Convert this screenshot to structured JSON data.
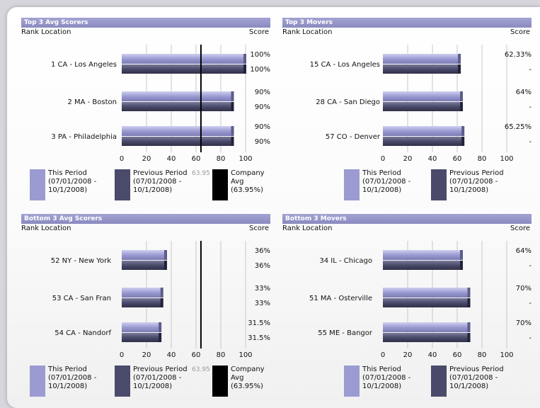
{
  "colors": {
    "this_period": "#9b9bd2",
    "previous_period": "#4a4a6a",
    "company_avg": "#000000"
  },
  "column_headers": {
    "rank_location": "Rank  Location",
    "score": "Score"
  },
  "legend": {
    "this_period": "This Period (07/01/2008 - 10/1/2008)",
    "previous_period": "Previous Period (07/01/2008 - 10/1/2008)",
    "company_avg": "Company Avg (63.95%)"
  },
  "panels": [
    {
      "title": "Top 3 Avg Scorers",
      "show_company_avg": true,
      "company_avg_label": "63.95",
      "rows": [
        {
          "rank_location": "1  CA - Los Angeles",
          "this_label": "100%",
          "prev_label": "100%"
        },
        {
          "rank_location": "2  MA - Boston",
          "this_label": "90%",
          "prev_label": "90%"
        },
        {
          "rank_location": "3  PA - Philadelphia",
          "this_label": "90%",
          "prev_label": "90%"
        }
      ]
    },
    {
      "title": "Top 3 Movers",
      "show_company_avg": false,
      "company_avg_label": "",
      "rows": [
        {
          "rank_location": "15  CA - Los Angeles",
          "this_label": "62.33%",
          "prev_label": "-"
        },
        {
          "rank_location": "28  CA - San Diego",
          "this_label": "64%",
          "prev_label": "-"
        },
        {
          "rank_location": "57  CO - Denver",
          "this_label": "65.25%",
          "prev_label": "-"
        }
      ]
    },
    {
      "title": "Bottom 3 Avg Scorers",
      "show_company_avg": true,
      "company_avg_label": "63.95",
      "rows": [
        {
          "rank_location": "52  NY - New York",
          "this_label": "36%",
          "prev_label": "36%"
        },
        {
          "rank_location": "53  CA - San Fran",
          "this_label": "33%",
          "prev_label": "33%"
        },
        {
          "rank_location": "54  CA - Nandorf",
          "this_label": "31.5%",
          "prev_label": "31.5%"
        }
      ]
    },
    {
      "title": "Bottom 3 Movers",
      "show_company_avg": false,
      "company_avg_label": "",
      "rows": [
        {
          "rank_location": "34  IL - Chicago",
          "this_label": "64%",
          "prev_label": "-"
        },
        {
          "rank_location": "51  MA - Osterville",
          "this_label": "70%",
          "prev_label": "-"
        },
        {
          "rank_location": "55  ME - Bangor",
          "this_label": "70%",
          "prev_label": "-"
        }
      ]
    }
  ],
  "chart_data": [
    {
      "type": "bar",
      "title": "Top 3 Avg Scorers",
      "categories": [
        "1  CA - Los Angeles",
        "2  MA - Boston",
        "3  PA - Philadelphia"
      ],
      "series": [
        {
          "name": "This Period (07/01/2008 - 10/1/2008)",
          "values": [
            100,
            90,
            90
          ]
        },
        {
          "name": "Previous Period (07/01/2008 - 10/1/2008)",
          "values": [
            100,
            90,
            90
          ]
        }
      ],
      "company_avg": 63.95,
      "xlim": [
        0,
        100
      ],
      "ticks": [
        0,
        20,
        40,
        60,
        80,
        100
      ]
    },
    {
      "type": "bar",
      "title": "Top 3 Movers",
      "categories": [
        "15  CA - Los Angeles",
        "28  CA - San Diego",
        "57  CO - Denver"
      ],
      "series": [
        {
          "name": "This Period (07/01/2008 - 10/1/2008)",
          "values": [
            62.33,
            64,
            65.25
          ]
        },
        {
          "name": "Previous Period (07/01/2008 - 10/1/2008)",
          "values": [
            62.33,
            64,
            65.25
          ]
        }
      ],
      "xlim": [
        0,
        100
      ],
      "ticks": [
        0,
        20,
        40,
        60,
        80,
        100
      ]
    },
    {
      "type": "bar",
      "title": "Bottom 3 Avg Scorers",
      "categories": [
        "52  NY - New York",
        "53  CA - San Fran",
        "54  CA - Nandorf"
      ],
      "series": [
        {
          "name": "This Period (07/01/2008 - 10/1/2008)",
          "values": [
            36,
            33,
            31.5
          ]
        },
        {
          "name": "Previous Period (07/01/2008 - 10/1/2008)",
          "values": [
            36,
            33,
            31.5
          ]
        }
      ],
      "company_avg": 63.95,
      "xlim": [
        0,
        100
      ],
      "ticks": [
        0,
        20,
        40,
        60,
        80,
        100
      ]
    },
    {
      "type": "bar",
      "title": "Bottom 3 Movers",
      "categories": [
        "34  IL - Chicago",
        "51  MA - Osterville",
        "55  ME - Bangor"
      ],
      "series": [
        {
          "name": "This Period (07/01/2008 - 10/1/2008)",
          "values": [
            64,
            70,
            70
          ]
        },
        {
          "name": "Previous Period (07/01/2008 - 10/1/2008)",
          "values": [
            64,
            70,
            70
          ]
        }
      ],
      "xlim": [
        0,
        100
      ],
      "ticks": [
        0,
        20,
        40,
        60,
        80,
        100
      ]
    }
  ]
}
